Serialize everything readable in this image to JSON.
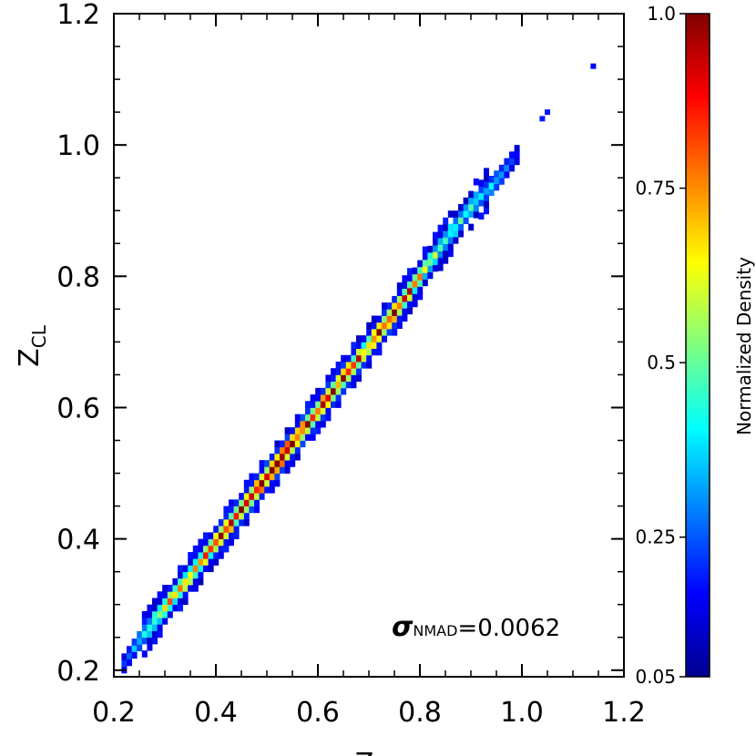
{
  "chart_data": {
    "type": "heatmap",
    "title": "",
    "xlabel": "Z",
    "ylabel": "Z",
    "ylabel_subscript": "CL",
    "xlim": [
      0.2,
      1.2
    ],
    "ylim": [
      0.19,
      1.2
    ],
    "x_ticks": [
      0.2,
      0.4,
      0.6,
      0.8,
      1.0,
      1.2
    ],
    "x_tick_labels": [
      "0.2",
      "0.4",
      "0.6",
      "0.8",
      "1.0",
      "1.2"
    ],
    "y_ticks": [
      0.2,
      0.4,
      0.6,
      0.8,
      1.0,
      1.2
    ],
    "y_tick_labels": [
      "0.2",
      "0.4",
      "0.6",
      "0.8",
      "1.0",
      "1.2"
    ],
    "annotation": {
      "symbol": "σ",
      "subscript": "NMAD",
      "text": "=0.0062",
      "x": 0.88,
      "y": 0.26
    },
    "colorbar": {
      "label": "Normalized Density",
      "colormap": "jet",
      "range": [
        0.05,
        1.0
      ],
      "ticks": [
        0.05,
        0.25,
        0.5,
        0.75,
        1.0
      ],
      "tick_labels": [
        "0.05",
        "0.25",
        "0.5",
        "0.75",
        "1.0"
      ]
    },
    "density_ridge": {
      "description_points": [
        {
          "x": 0.21,
          "y": 0.2,
          "peak": 0.15
        },
        {
          "x": 0.25,
          "y": 0.245,
          "peak": 0.35
        },
        {
          "x": 0.3,
          "y": 0.295,
          "peak": 0.7
        },
        {
          "x": 0.35,
          "y": 0.345,
          "peak": 0.75
        },
        {
          "x": 0.4,
          "y": 0.395,
          "peak": 0.8
        },
        {
          "x": 0.45,
          "y": 0.445,
          "peak": 0.95
        },
        {
          "x": 0.5,
          "y": 0.495,
          "peak": 1.0
        },
        {
          "x": 0.55,
          "y": 0.545,
          "peak": 1.0
        },
        {
          "x": 0.6,
          "y": 0.595,
          "peak": 0.95
        },
        {
          "x": 0.65,
          "y": 0.645,
          "peak": 0.9
        },
        {
          "x": 0.7,
          "y": 0.695,
          "peak": 0.8
        },
        {
          "x": 0.75,
          "y": 0.745,
          "peak": 0.95
        },
        {
          "x": 0.8,
          "y": 0.8,
          "peak": 0.6
        },
        {
          "x": 0.85,
          "y": 0.855,
          "peak": 0.45
        },
        {
          "x": 0.9,
          "y": 0.905,
          "peak": 0.4
        },
        {
          "x": 0.95,
          "y": 0.945,
          "peak": 0.3
        },
        {
          "x": 0.99,
          "y": 0.985,
          "peak": 0.12
        }
      ],
      "outliers": [
        {
          "x": 1.04,
          "y": 1.04,
          "value": 0.15
        },
        {
          "x": 1.05,
          "y": 1.05,
          "value": 0.15
        },
        {
          "x": 1.14,
          "y": 1.12,
          "value": 0.12
        }
      ]
    }
  }
}
